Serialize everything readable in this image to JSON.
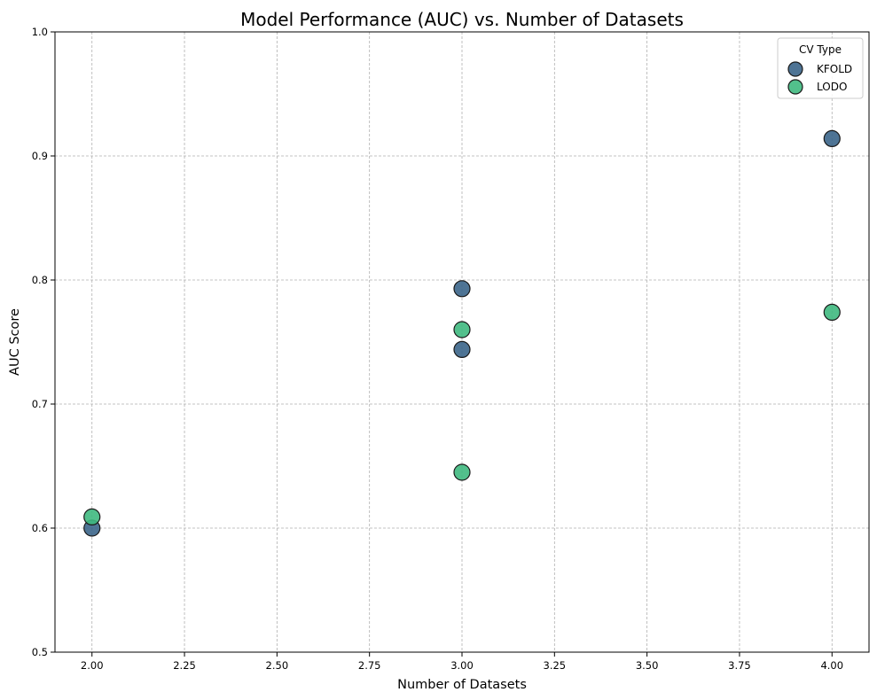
{
  "chart_data": {
    "type": "scatter",
    "title": "Model Performance (AUC) vs. Number of Datasets",
    "xlabel": "Number of Datasets",
    "ylabel": "AUC Score",
    "xlim": [
      1.9,
      4.1
    ],
    "ylim": [
      0.5,
      1.0
    ],
    "xticks": [
      "2.00",
      "2.25",
      "2.50",
      "2.75",
      "3.00",
      "3.25",
      "3.50",
      "3.75",
      "4.00"
    ],
    "xtick_values": [
      2.0,
      2.25,
      2.5,
      2.75,
      3.0,
      3.25,
      3.5,
      3.75,
      4.0
    ],
    "yticks": [
      "0.5",
      "0.6",
      "0.7",
      "0.8",
      "0.9",
      "1.0"
    ],
    "ytick_values": [
      0.5,
      0.6,
      0.7,
      0.8,
      0.9,
      1.0
    ],
    "grid": true,
    "legend": {
      "title": "CV Type",
      "placement": "top-right"
    },
    "series": [
      {
        "name": "KFOLD",
        "color": "#3b6589",
        "points": [
          {
            "x": 2,
            "y": 0.6
          },
          {
            "x": 3,
            "y": 0.793
          },
          {
            "x": 3,
            "y": 0.744
          },
          {
            "x": 4,
            "y": 0.914
          }
        ]
      },
      {
        "name": "LODO",
        "color": "#3fb97f",
        "points": [
          {
            "x": 2,
            "y": 0.609
          },
          {
            "x": 3,
            "y": 0.76
          },
          {
            "x": 3,
            "y": 0.645
          },
          {
            "x": 4,
            "y": 0.774
          }
        ]
      }
    ]
  }
}
